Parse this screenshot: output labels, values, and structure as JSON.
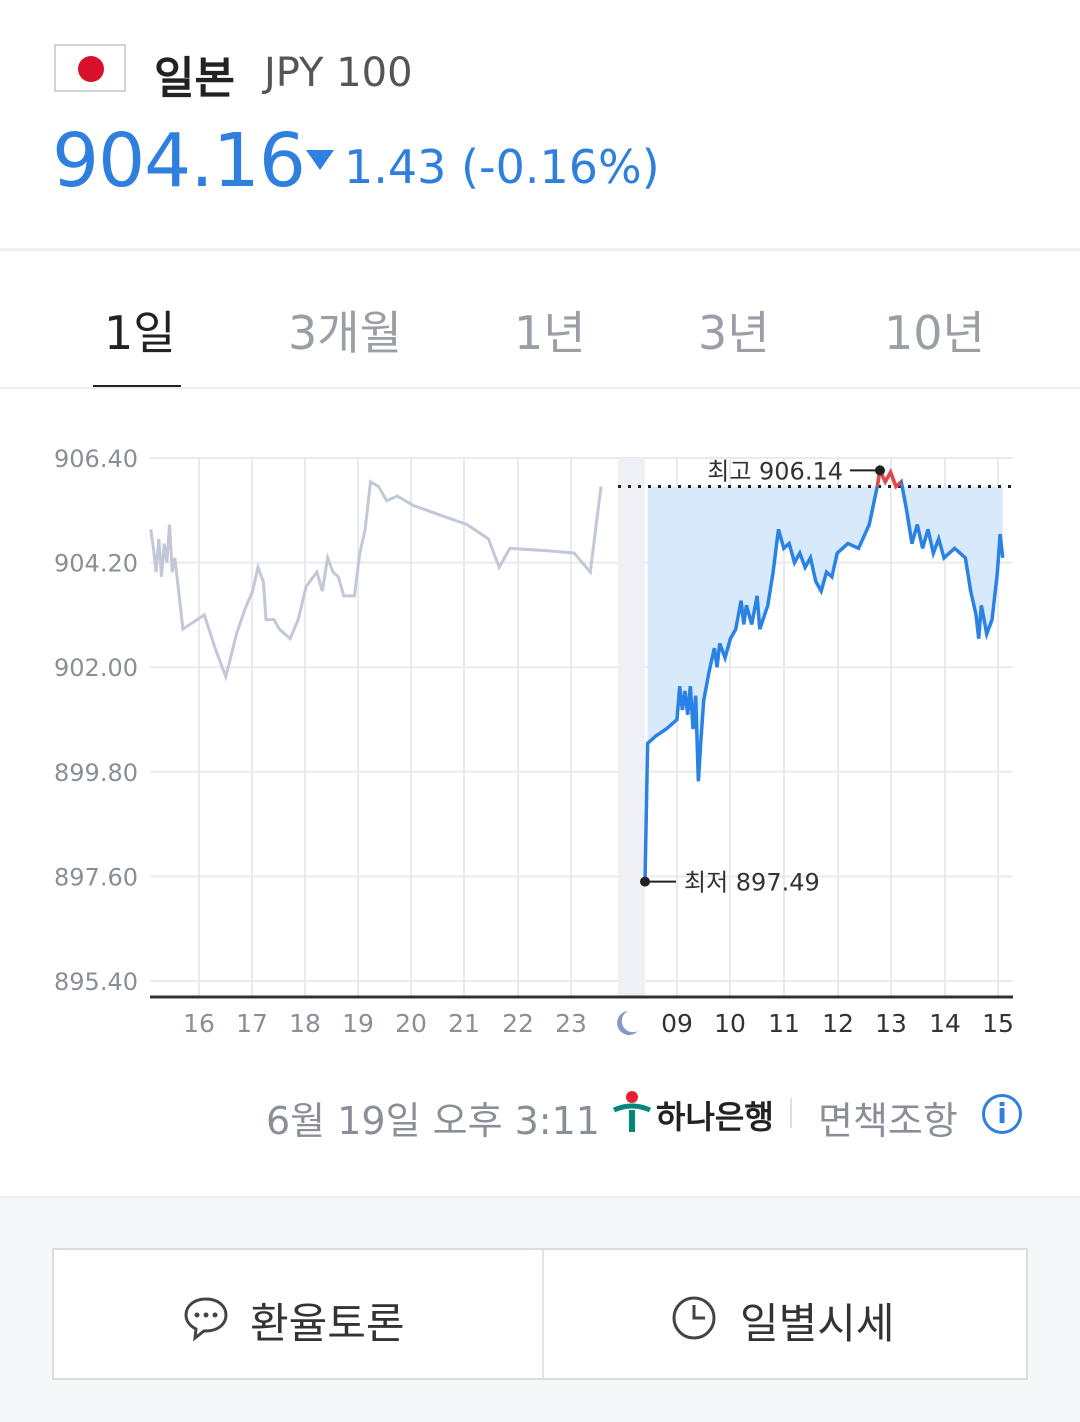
{
  "header": {
    "country": "일본",
    "currency_code": "JPY 100",
    "price": "904.16",
    "change": "1.43 (-0.16%)",
    "direction": "down",
    "accent_color": "#2f7fde"
  },
  "tabs": [
    {
      "label": "1일",
      "active": true
    },
    {
      "label": "3개월",
      "active": false
    },
    {
      "label": "1년",
      "active": false
    },
    {
      "label": "3년",
      "active": false
    },
    {
      "label": "10년",
      "active": false
    }
  ],
  "chart_data": {
    "type": "line",
    "y_ticks": [
      "906.40",
      "904.20",
      "902.00",
      "899.80",
      "897.60",
      "895.40"
    ],
    "ylim": [
      895.4,
      906.4
    ],
    "x_ticks": [
      "16",
      "17",
      "18",
      "19",
      "20",
      "21",
      "22",
      "23",
      "night-icon",
      "09",
      "10",
      "11",
      "12",
      "13",
      "14",
      "15"
    ],
    "reference_level": 905.8,
    "high": {
      "label": "최고 906.14",
      "value": 906.14,
      "time": 12.8
    },
    "low": {
      "label": "최저 897.49",
      "value": 897.49,
      "time": 8.4
    },
    "series": [
      {
        "role": "previous_session",
        "color": "#c3c8d8",
        "points": [
          [
            15.1,
            904.9
          ],
          [
            15.15,
            904.5
          ],
          [
            15.2,
            904.0
          ],
          [
            15.25,
            904.7
          ],
          [
            15.3,
            903.9
          ],
          [
            15.35,
            904.6
          ],
          [
            15.4,
            904.2
          ],
          [
            15.45,
            905.0
          ],
          [
            15.5,
            904.0
          ],
          [
            15.55,
            904.3
          ],
          [
            15.6,
            903.8
          ],
          [
            15.7,
            902.8
          ],
          [
            15.9,
            902.95
          ],
          [
            16.1,
            903.1
          ],
          [
            16.3,
            902.4
          ],
          [
            16.5,
            901.8
          ],
          [
            16.7,
            902.7
          ],
          [
            16.85,
            903.2
          ],
          [
            17.0,
            903.6
          ],
          [
            17.1,
            904.1
          ],
          [
            17.2,
            903.8
          ],
          [
            17.25,
            903.0
          ],
          [
            17.4,
            903.0
          ],
          [
            17.5,
            902.8
          ],
          [
            17.7,
            902.6
          ],
          [
            17.85,
            903.0
          ],
          [
            18.0,
            903.7
          ],
          [
            18.2,
            904.0
          ],
          [
            18.3,
            903.6
          ],
          [
            18.4,
            904.3
          ],
          [
            18.5,
            904.0
          ],
          [
            18.6,
            903.9
          ],
          [
            18.7,
            903.5
          ],
          [
            18.9,
            903.5
          ],
          [
            19.0,
            904.4
          ],
          [
            19.1,
            904.9
          ],
          [
            19.2,
            905.9
          ],
          [
            19.35,
            905.8
          ],
          [
            19.5,
            905.5
          ],
          [
            19.7,
            905.6
          ],
          [
            20.0,
            905.4
          ],
          [
            20.5,
            905.2
          ],
          [
            21.0,
            905.0
          ],
          [
            21.4,
            904.7
          ],
          [
            21.6,
            904.1
          ],
          [
            21.8,
            904.5
          ],
          [
            22.5,
            904.45
          ],
          [
            23.0,
            904.4
          ],
          [
            23.3,
            904.0
          ],
          [
            23.5,
            905.8
          ]
        ]
      },
      {
        "role": "today_session",
        "color": "#2a82e4",
        "high_color": "#e44747",
        "points": [
          [
            8.4,
            897.49
          ],
          [
            8.45,
            900.4
          ],
          [
            8.6,
            900.55
          ],
          [
            8.8,
            900.7
          ],
          [
            9.0,
            900.9
          ],
          [
            9.05,
            901.6
          ],
          [
            9.1,
            901.1
          ],
          [
            9.15,
            901.5
          ],
          [
            9.2,
            901.0
          ],
          [
            9.25,
            901.6
          ],
          [
            9.3,
            900.7
          ],
          [
            9.35,
            901.4
          ],
          [
            9.4,
            899.6
          ],
          [
            9.45,
            900.5
          ],
          [
            9.5,
            901.3
          ],
          [
            9.6,
            901.9
          ],
          [
            9.7,
            902.4
          ],
          [
            9.75,
            902.0
          ],
          [
            9.8,
            902.5
          ],
          [
            9.9,
            902.2
          ],
          [
            10.0,
            902.6
          ],
          [
            10.1,
            902.8
          ],
          [
            10.2,
            903.4
          ],
          [
            10.25,
            902.9
          ],
          [
            10.3,
            903.3
          ],
          [
            10.4,
            902.9
          ],
          [
            10.5,
            903.5
          ],
          [
            10.55,
            902.8
          ],
          [
            10.7,
            903.3
          ],
          [
            10.8,
            904.0
          ],
          [
            10.9,
            904.9
          ],
          [
            11.0,
            904.5
          ],
          [
            11.1,
            904.6
          ],
          [
            11.2,
            904.2
          ],
          [
            11.3,
            904.4
          ],
          [
            11.4,
            904.1
          ],
          [
            11.5,
            904.3
          ],
          [
            11.6,
            903.8
          ],
          [
            11.7,
            903.6
          ],
          [
            11.8,
            904.0
          ],
          [
            11.9,
            903.9
          ],
          [
            12.0,
            904.4
          ],
          [
            12.2,
            904.6
          ],
          [
            12.4,
            904.5
          ],
          [
            12.6,
            905.0
          ],
          [
            12.75,
            905.8
          ],
          [
            12.8,
            906.14
          ],
          [
            12.9,
            905.9
          ],
          [
            13.0,
            906.1
          ],
          [
            13.1,
            905.8
          ],
          [
            13.2,
            905.9
          ],
          [
            13.3,
            905.3
          ],
          [
            13.4,
            904.6
          ],
          [
            13.5,
            905.0
          ],
          [
            13.6,
            904.5
          ],
          [
            13.7,
            904.9
          ],
          [
            13.8,
            904.4
          ],
          [
            13.9,
            904.7
          ],
          [
            14.0,
            904.3
          ],
          [
            14.2,
            904.5
          ],
          [
            14.4,
            904.3
          ],
          [
            14.5,
            903.6
          ],
          [
            14.6,
            903.1
          ],
          [
            14.65,
            902.6
          ],
          [
            14.7,
            903.3
          ],
          [
            14.8,
            902.7
          ],
          [
            14.9,
            903.0
          ],
          [
            15.0,
            904.0
          ],
          [
            15.05,
            904.8
          ],
          [
            15.1,
            904.3
          ]
        ]
      }
    ]
  },
  "footer": {
    "timestamp": "6월 19일 오후 3:11",
    "bank": "하나은행",
    "disclaimer": "면책조항",
    "info_icon": "i"
  },
  "actions": {
    "discussion": "환율토론",
    "daily": "일별시세"
  }
}
